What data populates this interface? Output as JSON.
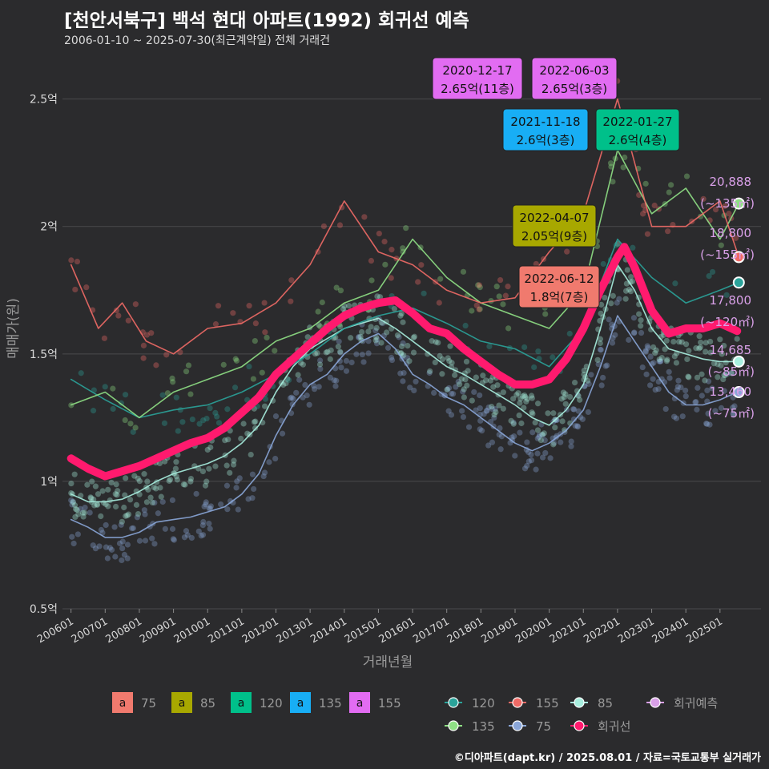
{
  "title": "[천안서북구] 백석 현대 아파트(1992) 회귀선 예측",
  "subtitle": "2006-01-10 ~ 2025-07-30(최근계약일) 전체 거래건",
  "footer": "©디아파트(dapt.kr) / 2025.08.01 / 자료=국토교통부 실거래가",
  "colors": {
    "bg": "#2b2b2d",
    "grid": "#4a4a4d",
    "75": "#f07a6e",
    "85": "#a8a800",
    "120": "#00c08a",
    "135": "#18aef5",
    "155": "#e26cf2",
    "line120": "#2aa39a",
    "line135": "#8fe085",
    "line155": "#f06a66",
    "line85": "#a8f0e0",
    "line75": "#8aa6d8",
    "reg": "#ff1a6e",
    "predict": "#d9a0e8"
  },
  "chart_data": {
    "type": "line",
    "xlabel": "거래년월",
    "ylabel": "매매가(원)",
    "ylim": [
      0.5,
      2.7
    ],
    "xlim": [
      2005.75,
      2026.2
    ],
    "y_ticks": [
      {
        "v": 0.5,
        "label": "0.5억"
      },
      {
        "v": 1,
        "label": "1억"
      },
      {
        "v": 1.5,
        "label": "1.5억"
      },
      {
        "v": 2,
        "label": "2억"
      },
      {
        "v": 2.5,
        "label": "2.5억"
      }
    ],
    "x_ticks": [
      {
        "v": 2006,
        "label": "200601"
      },
      {
        "v": 2007,
        "label": "200701"
      },
      {
        "v": 2008,
        "label": "200801"
      },
      {
        "v": 2009,
        "label": "200901"
      },
      {
        "v": 2010,
        "label": "201001"
      },
      {
        "v": 2011,
        "label": "201101"
      },
      {
        "v": 2012,
        "label": "201201"
      },
      {
        "v": 2013,
        "label": "201301"
      },
      {
        "v": 2014,
        "label": "201401"
      },
      {
        "v": 2015,
        "label": "201501"
      },
      {
        "v": 2016,
        "label": "201601"
      },
      {
        "v": 2017,
        "label": "201701"
      },
      {
        "v": 2018,
        "label": "201801"
      },
      {
        "v": 2019,
        "label": "201901"
      },
      {
        "v": 2020,
        "label": "202001"
      },
      {
        "v": 2021,
        "label": "202101"
      },
      {
        "v": 2022,
        "label": "202201"
      },
      {
        "v": 2023,
        "label": "202301"
      },
      {
        "v": 2024,
        "label": "202401"
      },
      {
        "v": 2025,
        "label": "202501"
      }
    ],
    "series": [
      {
        "name": "75",
        "color": "#8aa6d8",
        "x": [
          2006,
          2006.5,
          2007,
          2007.5,
          2008,
          2008.5,
          2009,
          2009.5,
          2010,
          2010.5,
          2011,
          2011.5,
          2012,
          2012.5,
          2013,
          2013.5,
          2014,
          2014.5,
          2015,
          2015.5,
          2016,
          2016.5,
          2017,
          2017.5,
          2018,
          2018.5,
          2019,
          2019.5,
          2020,
          2020.5,
          2021,
          2021.5,
          2022,
          2022.5,
          2023,
          2023.5,
          2024,
          2024.5,
          2025,
          2025.5
        ],
        "y": [
          0.85,
          0.82,
          0.78,
          0.78,
          0.8,
          0.84,
          0.85,
          0.86,
          0.88,
          0.9,
          0.95,
          1.03,
          1.18,
          1.3,
          1.38,
          1.42,
          1.5,
          1.55,
          1.58,
          1.52,
          1.42,
          1.38,
          1.33,
          1.3,
          1.25,
          1.2,
          1.15,
          1.12,
          1.15,
          1.2,
          1.28,
          1.45,
          1.65,
          1.55,
          1.45,
          1.35,
          1.3,
          1.3,
          1.32,
          1.35
        ]
      },
      {
        "name": "85",
        "color": "#a8f0e0",
        "x": [
          2006,
          2006.5,
          2007,
          2007.5,
          2008,
          2008.5,
          2009,
          2009.5,
          2010,
          2010.5,
          2011,
          2011.5,
          2012,
          2012.5,
          2013,
          2013.5,
          2014,
          2014.5,
          2015,
          2015.5,
          2016,
          2016.5,
          2017,
          2017.5,
          2018,
          2018.5,
          2019,
          2019.5,
          2020,
          2020.5,
          2021,
          2021.5,
          2022,
          2022.5,
          2023,
          2023.5,
          2024,
          2024.5,
          2025,
          2025.5
        ],
        "y": [
          0.95,
          0.92,
          0.92,
          0.93,
          0.96,
          1.0,
          1.03,
          1.05,
          1.07,
          1.1,
          1.15,
          1.22,
          1.35,
          1.45,
          1.52,
          1.56,
          1.6,
          1.62,
          1.64,
          1.6,
          1.55,
          1.5,
          1.45,
          1.42,
          1.38,
          1.34,
          1.3,
          1.25,
          1.22,
          1.28,
          1.38,
          1.6,
          1.85,
          1.75,
          1.6,
          1.52,
          1.5,
          1.48,
          1.47,
          1.47
        ]
      },
      {
        "name": "120",
        "color": "#2aa39a",
        "x": [
          2006,
          2007,
          2008,
          2009,
          2010,
          2011,
          2012,
          2013,
          2014,
          2015,
          2016,
          2017,
          2018,
          2019,
          2020,
          2021,
          2022,
          2023,
          2024,
          2025,
          2025.55
        ],
        "y": [
          1.4,
          1.32,
          1.25,
          1.28,
          1.3,
          1.35,
          1.42,
          1.5,
          1.6,
          1.65,
          1.68,
          1.62,
          1.55,
          1.52,
          1.45,
          1.6,
          1.95,
          1.8,
          1.7,
          1.75,
          1.78
        ]
      },
      {
        "name": "135",
        "color": "#8fe085",
        "x": [
          2006,
          2007,
          2008,
          2009,
          2010,
          2011,
          2012,
          2013,
          2014,
          2015,
          2016,
          2017,
          2018,
          2019,
          2020,
          2021,
          2022,
          2023,
          2024,
          2025,
          2025.55
        ],
        "y": [
          1.3,
          1.35,
          1.25,
          1.35,
          1.4,
          1.45,
          1.55,
          1.6,
          1.7,
          1.75,
          1.95,
          1.8,
          1.7,
          1.65,
          1.6,
          1.75,
          2.3,
          2.05,
          2.15,
          1.95,
          2.09
        ]
      },
      {
        "name": "155",
        "color": "#f06a66",
        "x": [
          2006,
          2006.8,
          2007.5,
          2008.2,
          2009,
          2010,
          2011,
          2012,
          2013,
          2014,
          2015,
          2016,
          2017,
          2018,
          2019,
          2020,
          2021,
          2022,
          2023,
          2024,
          2025,
          2025.55
        ],
        "y": [
          1.85,
          1.6,
          1.7,
          1.55,
          1.5,
          1.6,
          1.62,
          1.7,
          1.85,
          2.1,
          1.9,
          1.85,
          1.75,
          1.7,
          1.72,
          1.9,
          2.05,
          2.5,
          2.0,
          2.0,
          2.1,
          1.88
        ]
      },
      {
        "name": "회귀선",
        "color": "#ff1a6e",
        "x": [
          2006,
          2006.5,
          2007,
          2007.5,
          2008,
          2008.5,
          2009,
          2009.5,
          2010,
          2010.5,
          2011,
          2011.5,
          2012,
          2012.5,
          2013,
          2013.5,
          2014,
          2014.5,
          2015,
          2015.5,
          2016,
          2016.5,
          2017,
          2017.5,
          2018,
          2018.5,
          2019,
          2019.5,
          2020,
          2020.5,
          2021,
          2021.5,
          2022,
          2022.2,
          2022.5,
          2023,
          2023.5,
          2024,
          2024.5,
          2025,
          2025.5
        ],
        "y": [
          1.09,
          1.05,
          1.02,
          1.04,
          1.06,
          1.09,
          1.12,
          1.15,
          1.17,
          1.21,
          1.27,
          1.33,
          1.42,
          1.48,
          1.54,
          1.6,
          1.65,
          1.68,
          1.7,
          1.71,
          1.66,
          1.6,
          1.58,
          1.52,
          1.47,
          1.42,
          1.38,
          1.38,
          1.4,
          1.48,
          1.6,
          1.75,
          1.88,
          1.92,
          1.84,
          1.67,
          1.58,
          1.6,
          1.6,
          1.62,
          1.59
        ]
      }
    ],
    "callouts": [
      {
        "date": "2020-12-17",
        "label": "2.65억(11층)",
        "area": "155",
        "color": "#e26cf2"
      },
      {
        "date": "2022-06-03",
        "label": "2.65억(3층)",
        "area": "155",
        "color": "#e26cf2"
      },
      {
        "date": "2021-11-18",
        "label": "2.6억(3층)",
        "area": "135",
        "color": "#18aef5"
      },
      {
        "date": "2022-01-27",
        "label": "2.6억(4층)",
        "area": "120",
        "color": "#00c08a"
      },
      {
        "date": "2022-04-07",
        "label": "2.05억(9층)",
        "area": "85",
        "color": "#a8a800"
      },
      {
        "date": "2022-06-12",
        "label": "1.8억(7층)",
        "area": "75",
        "color": "#f07a6e"
      }
    ],
    "predictions": [
      {
        "value": "20,888",
        "area": "(~135㎡)",
        "y": 2.09,
        "color": "#8fe085"
      },
      {
        "value": "18,800",
        "area": "(~155㎡)",
        "y": 1.88,
        "color": "#f06a66"
      },
      {
        "value": "17,800",
        "area": "(~120㎡)",
        "y": 1.78,
        "color": "#2aa39a"
      },
      {
        "value": "14,685",
        "area": "(~85㎡)",
        "y": 1.47,
        "color": "#a8f0e0"
      },
      {
        "value": "13,460",
        "area": "(~75㎡)",
        "y": 1.35,
        "color": "#8aa6d8"
      }
    ],
    "legend_area": [
      {
        "label": "75",
        "color": "#f07a6e"
      },
      {
        "label": "85",
        "color": "#a8a800"
      },
      {
        "label": "120",
        "color": "#00c08a"
      },
      {
        "label": "135",
        "color": "#18aef5"
      },
      {
        "label": "155",
        "color": "#e26cf2"
      }
    ],
    "legend_area_glyph": "a",
    "legend_lines": [
      {
        "label": "120",
        "color": "#2aa39a"
      },
      {
        "label": "155",
        "color": "#f06a66"
      },
      {
        "label": "85",
        "color": "#a8f0e0"
      },
      {
        "label": "회귀예측",
        "color": "#d9a0e8"
      },
      {
        "label": "135",
        "color": "#8fe085"
      },
      {
        "label": "75",
        "color": "#8aa6d8"
      },
      {
        "label": "회귀선",
        "color": "#ff1a6e"
      }
    ]
  }
}
